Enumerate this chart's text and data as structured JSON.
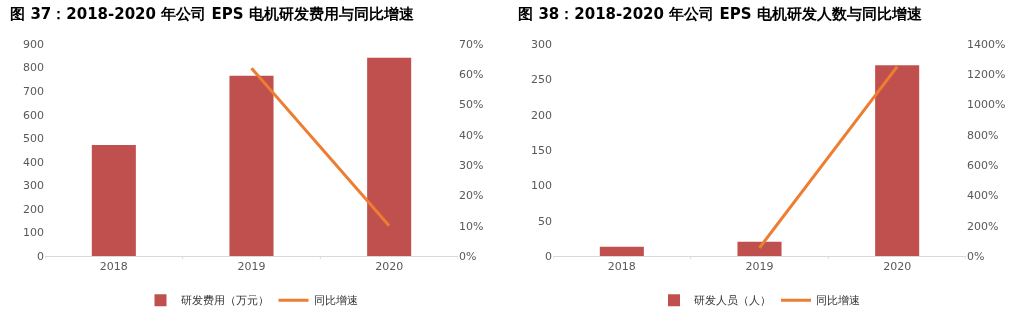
{
  "chart_data": [
    {
      "type": "bar",
      "title": "图 37：2018-2020 年公司 EPS 电机研发费用与同比增速",
      "categories": [
        "2018",
        "2019",
        "2020"
      ],
      "series": [
        {
          "name": "研发费用（万元）",
          "color": "#c0504d",
          "values": [
            471,
            765,
            842
          ]
        },
        {
          "name": "同比增速",
          "type": "line",
          "axis": "y2",
          "color": "#ed7d31",
          "values": [
            null,
            62,
            10
          ]
        }
      ],
      "ylim": [
        0,
        900
      ],
      "yticks": [
        0,
        100,
        200,
        300,
        400,
        500,
        600,
        700,
        800,
        900
      ],
      "y2lim": [
        0,
        70
      ],
      "y2ticks": [
        {
          "value": 0,
          "label": "0%"
        },
        {
          "value": 10,
          "label": "10%"
        },
        {
          "value": 20,
          "label": "20%"
        },
        {
          "value": 30,
          "label": "30%"
        },
        {
          "value": 40,
          "label": "40%"
        },
        {
          "value": 50,
          "label": "50%"
        },
        {
          "value": 60,
          "label": "60%"
        },
        {
          "value": 70,
          "label": "70%"
        }
      ],
      "grid": false,
      "legend": "bottom",
      "marker": "none"
    },
    {
      "type": "bar",
      "title": "图 38：2018-2020 年公司 EPS 电机研发人数与同比增速",
      "categories": [
        "2018",
        "2019",
        "2020"
      ],
      "series": [
        {
          "name": "研发人员（人）",
          "color": "#c0504d",
          "values": [
            13,
            20,
            270
          ]
        },
        {
          "name": "同比增速",
          "type": "line",
          "axis": "y2",
          "color": "#ed7d31",
          "values": [
            null,
            54,
            1250
          ]
        }
      ],
      "ylim": [
        0,
        300
      ],
      "yticks": [
        0,
        50,
        100,
        150,
        200,
        250,
        300
      ],
      "y2lim": [
        0,
        1400
      ],
      "y2ticks": [
        {
          "value": 0,
          "label": "0%"
        },
        {
          "value": 200,
          "label": "200%"
        },
        {
          "value": 400,
          "label": "400%"
        },
        {
          "value": 600,
          "label": "600%"
        },
        {
          "value": 800,
          "label": "800%"
        },
        {
          "value": 1000,
          "label": "1000%"
        },
        {
          "value": 1200,
          "label": "1200%"
        },
        {
          "value": 1400,
          "label": "1400%"
        }
      ],
      "grid": false,
      "legend": "bottom",
      "marker": "none"
    }
  ]
}
